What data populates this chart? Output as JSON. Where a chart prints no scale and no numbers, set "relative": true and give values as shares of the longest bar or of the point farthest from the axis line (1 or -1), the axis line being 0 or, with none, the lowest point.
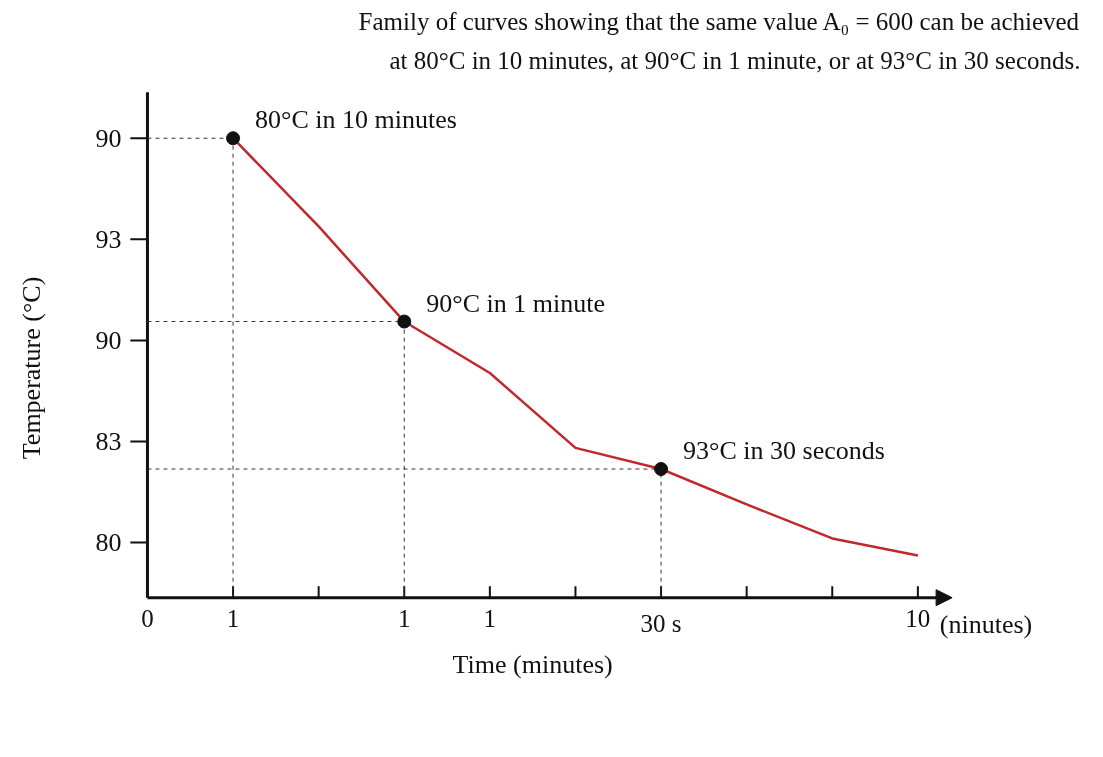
{
  "chart_data": {
    "type": "line",
    "title": "Family of curves showing that the same value A₀ = 600 can be achieved",
    "subtitle": "at 80°C in 10 minutes, at 90°C in 1 minute, or at 93°C in 30 seconds.",
    "xlabel": "Time (minutes)",
    "ylabel": "Temperature (°C)",
    "relative": true,
    "categories": [
      "0",
      "1",
      null,
      "1",
      "1",
      null,
      "30 s",
      null,
      null,
      "10"
    ],
    "grid": true,
    "line_style": "solid",
    "series": [
      {
        "color": "#c0282d",
        "values": [
          null,
          1.0,
          0.808,
          0.601,
          0.489,
          0.326,
          0.28,
          0.203,
          0.129,
          0.092
        ]
      },
      {
        "type": "scatter",
        "color": "#111111",
        "marker": "circle",
        "values": [
          null,
          1.0,
          null,
          0.601,
          null,
          null,
          0.28,
          null,
          null,
          null
        ]
      }
    ],
    "annotations": [
      "80°C in 10 minutes",
      "90°C in 1 minute",
      "93°C in 30 seconds",
      "90",
      "93",
      "90",
      "83",
      "80",
      "(ninutes)"
    ]
  }
}
